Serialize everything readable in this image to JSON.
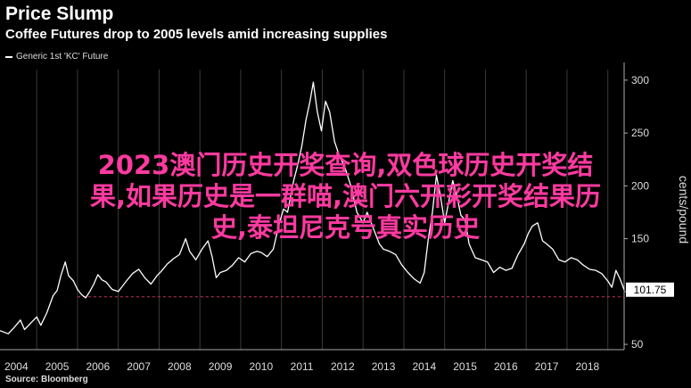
{
  "header": {
    "title": "Price Slump",
    "subtitle": "Coffee Futures drop to 2005 levels amid increasing supplies"
  },
  "footer": {
    "source": "Source: Bloomberg"
  },
  "overlay": {
    "line1": "2023澳门历史开奖查询,双色球历史开奖结",
    "line2": "果,如果历史是一群喵,澳门六开彩开奖结果历",
    "line3": "史,泰坦尼克号真实历史"
  },
  "colors": {
    "line": "#ffffff",
    "reference": "#c8305a",
    "overlay_text": "#ff3aa0",
    "background": "#000000"
  },
  "chart_data": {
    "type": "line",
    "title": "Price Slump",
    "subtitle": "Coffee Futures drop to 2005 levels amid increasing supplies",
    "ylabel": "cents/pound",
    "xlabel": "",
    "xlim": [
      2003.6,
      2018.9
    ],
    "ylim": [
      45,
      310
    ],
    "y_ticks": [
      50,
      100,
      150,
      200,
      250,
      300
    ],
    "x_ticks": [
      "2004",
      "2005",
      "2006",
      "2007",
      "2008",
      "2009",
      "2010",
      "2011",
      "2012",
      "2013",
      "2014",
      "2015",
      "2016",
      "2017",
      "2018"
    ],
    "reference_line": 95,
    "last_value_label": "101.75",
    "grid": "vertical",
    "series": [
      {
        "name": "Generic 1st 'KC' Future",
        "points": [
          [
            2003.6,
            63
          ],
          [
            2003.8,
            60
          ],
          [
            2003.95,
            66
          ],
          [
            2004.1,
            73
          ],
          [
            2004.2,
            64
          ],
          [
            2004.35,
            70
          ],
          [
            2004.5,
            76
          ],
          [
            2004.6,
            68
          ],
          [
            2004.75,
            80
          ],
          [
            2004.9,
            96
          ],
          [
            2005.0,
            101
          ],
          [
            2005.1,
            116
          ],
          [
            2005.2,
            128
          ],
          [
            2005.28,
            115
          ],
          [
            2005.4,
            110
          ],
          [
            2005.5,
            102
          ],
          [
            2005.6,
            97
          ],
          [
            2005.7,
            94
          ],
          [
            2005.8,
            100
          ],
          [
            2005.9,
            107
          ],
          [
            2006.0,
            116
          ],
          [
            2006.1,
            111
          ],
          [
            2006.2,
            109
          ],
          [
            2006.35,
            102
          ],
          [
            2006.5,
            100
          ],
          [
            2006.6,
            105
          ],
          [
            2006.7,
            110
          ],
          [
            2006.85,
            117
          ],
          [
            2007.0,
            121
          ],
          [
            2007.15,
            113
          ],
          [
            2007.3,
            107
          ],
          [
            2007.45,
            115
          ],
          [
            2007.55,
            119
          ],
          [
            2007.7,
            126
          ],
          [
            2007.85,
            131
          ],
          [
            2008.0,
            135
          ],
          [
            2008.15,
            150
          ],
          [
            2008.25,
            138
          ],
          [
            2008.4,
            130
          ],
          [
            2008.55,
            140
          ],
          [
            2008.7,
            148
          ],
          [
            2008.8,
            133
          ],
          [
            2008.9,
            113
          ],
          [
            2009.0,
            118
          ],
          [
            2009.15,
            120
          ],
          [
            2009.3,
            125
          ],
          [
            2009.45,
            132
          ],
          [
            2009.6,
            128
          ],
          [
            2009.75,
            136
          ],
          [
            2009.9,
            138
          ],
          [
            2010.0,
            137
          ],
          [
            2010.15,
            133
          ],
          [
            2010.3,
            140
          ],
          [
            2010.45,
            165
          ],
          [
            2010.55,
            178
          ],
          [
            2010.65,
            175
          ],
          [
            2010.8,
            205
          ],
          [
            2010.9,
            220
          ],
          [
            2011.0,
            238
          ],
          [
            2011.1,
            262
          ],
          [
            2011.2,
            280
          ],
          [
            2011.28,
            298
          ],
          [
            2011.38,
            270
          ],
          [
            2011.48,
            252
          ],
          [
            2011.58,
            280
          ],
          [
            2011.68,
            270
          ],
          [
            2011.8,
            242
          ],
          [
            2011.92,
            228
          ],
          [
            2012.05,
            218
          ],
          [
            2012.2,
            200
          ],
          [
            2012.35,
            175
          ],
          [
            2012.5,
            165
          ],
          [
            2012.6,
            175
          ],
          [
            2012.75,
            160
          ],
          [
            2012.9,
            145
          ],
          [
            2013.0,
            140
          ],
          [
            2013.15,
            138
          ],
          [
            2013.3,
            135
          ],
          [
            2013.45,
            125
          ],
          [
            2013.6,
            118
          ],
          [
            2013.75,
            112
          ],
          [
            2013.9,
            108
          ],
          [
            2014.0,
            118
          ],
          [
            2014.1,
            150
          ],
          [
            2014.2,
            175
          ],
          [
            2014.3,
            210
          ],
          [
            2014.4,
            190
          ],
          [
            2014.5,
            165
          ],
          [
            2014.6,
            185
          ],
          [
            2014.7,
            205
          ],
          [
            2014.8,
            190
          ],
          [
            2014.9,
            172
          ],
          [
            2015.0,
            168
          ],
          [
            2015.1,
            145
          ],
          [
            2015.25,
            132
          ],
          [
            2015.4,
            130
          ],
          [
            2015.55,
            128
          ],
          [
            2015.7,
            118
          ],
          [
            2015.85,
            123
          ],
          [
            2016.0,
            120
          ],
          [
            2016.15,
            122
          ],
          [
            2016.3,
            135
          ],
          [
            2016.45,
            145
          ],
          [
            2016.55,
            155
          ],
          [
            2016.65,
            162
          ],
          [
            2016.78,
            165
          ],
          [
            2016.9,
            148
          ],
          [
            2017.0,
            145
          ],
          [
            2017.15,
            140
          ],
          [
            2017.3,
            130
          ],
          [
            2017.45,
            128
          ],
          [
            2017.6,
            132
          ],
          [
            2017.75,
            130
          ],
          [
            2017.9,
            125
          ],
          [
            2018.05,
            121
          ],
          [
            2018.2,
            120
          ],
          [
            2018.35,
            117
          ],
          [
            2018.5,
            110
          ],
          [
            2018.6,
            104
          ],
          [
            2018.7,
            120
          ],
          [
            2018.8,
            112
          ],
          [
            2018.9,
            101.75
          ]
        ]
      }
    ]
  }
}
